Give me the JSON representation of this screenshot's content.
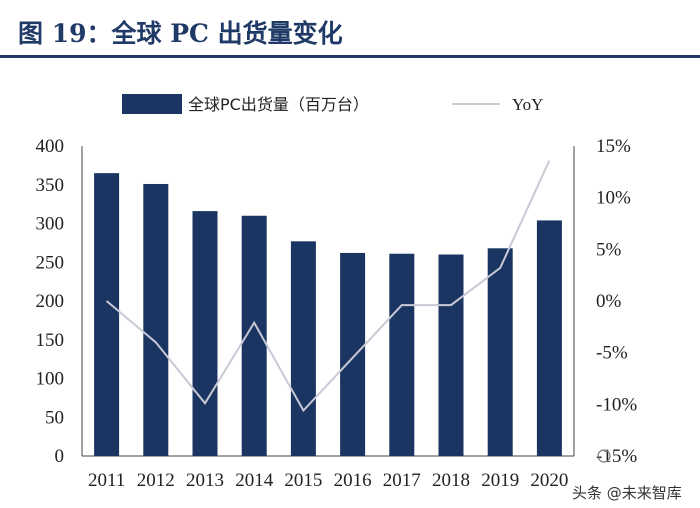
{
  "figure_title": "图 19：全球 PC 出货量变化",
  "chart_data": {
    "type": "bar",
    "categories": [
      "2011",
      "2012",
      "2013",
      "2014",
      "2015",
      "2016",
      "2017",
      "2018",
      "2019",
      "2020"
    ],
    "series": [
      {
        "name": "全球PC出货量（百万台）",
        "type": "bar",
        "axis": "left",
        "values": [
          365,
          351,
          316,
          310,
          277,
          262,
          261,
          260,
          268,
          304
        ]
      },
      {
        "name": "YoY",
        "type": "line",
        "axis": "right",
        "values": [
          0.0,
          -4.0,
          -9.9,
          -2.1,
          -10.6,
          -5.5,
          -0.4,
          -0.4,
          3.2,
          13.6
        ]
      }
    ],
    "y_left": {
      "min": 0,
      "max": 400,
      "step": 50,
      "ticks": [
        "0",
        "50",
        "100",
        "150",
        "200",
        "250",
        "300",
        "350",
        "400"
      ]
    },
    "y_right": {
      "min": -15,
      "max": 15,
      "step": 5,
      "ticks": [
        "-15%",
        "-10%",
        "-5%",
        "0%",
        "5%",
        "10%",
        "15%"
      ]
    },
    "colors": {
      "bar": "#1b3563",
      "line": "#c9c9d6",
      "title": "#1f3a66",
      "rule": "#1f3a66"
    },
    "legend_position": "top",
    "grid": false
  },
  "watermark": "头条 @未来智库"
}
